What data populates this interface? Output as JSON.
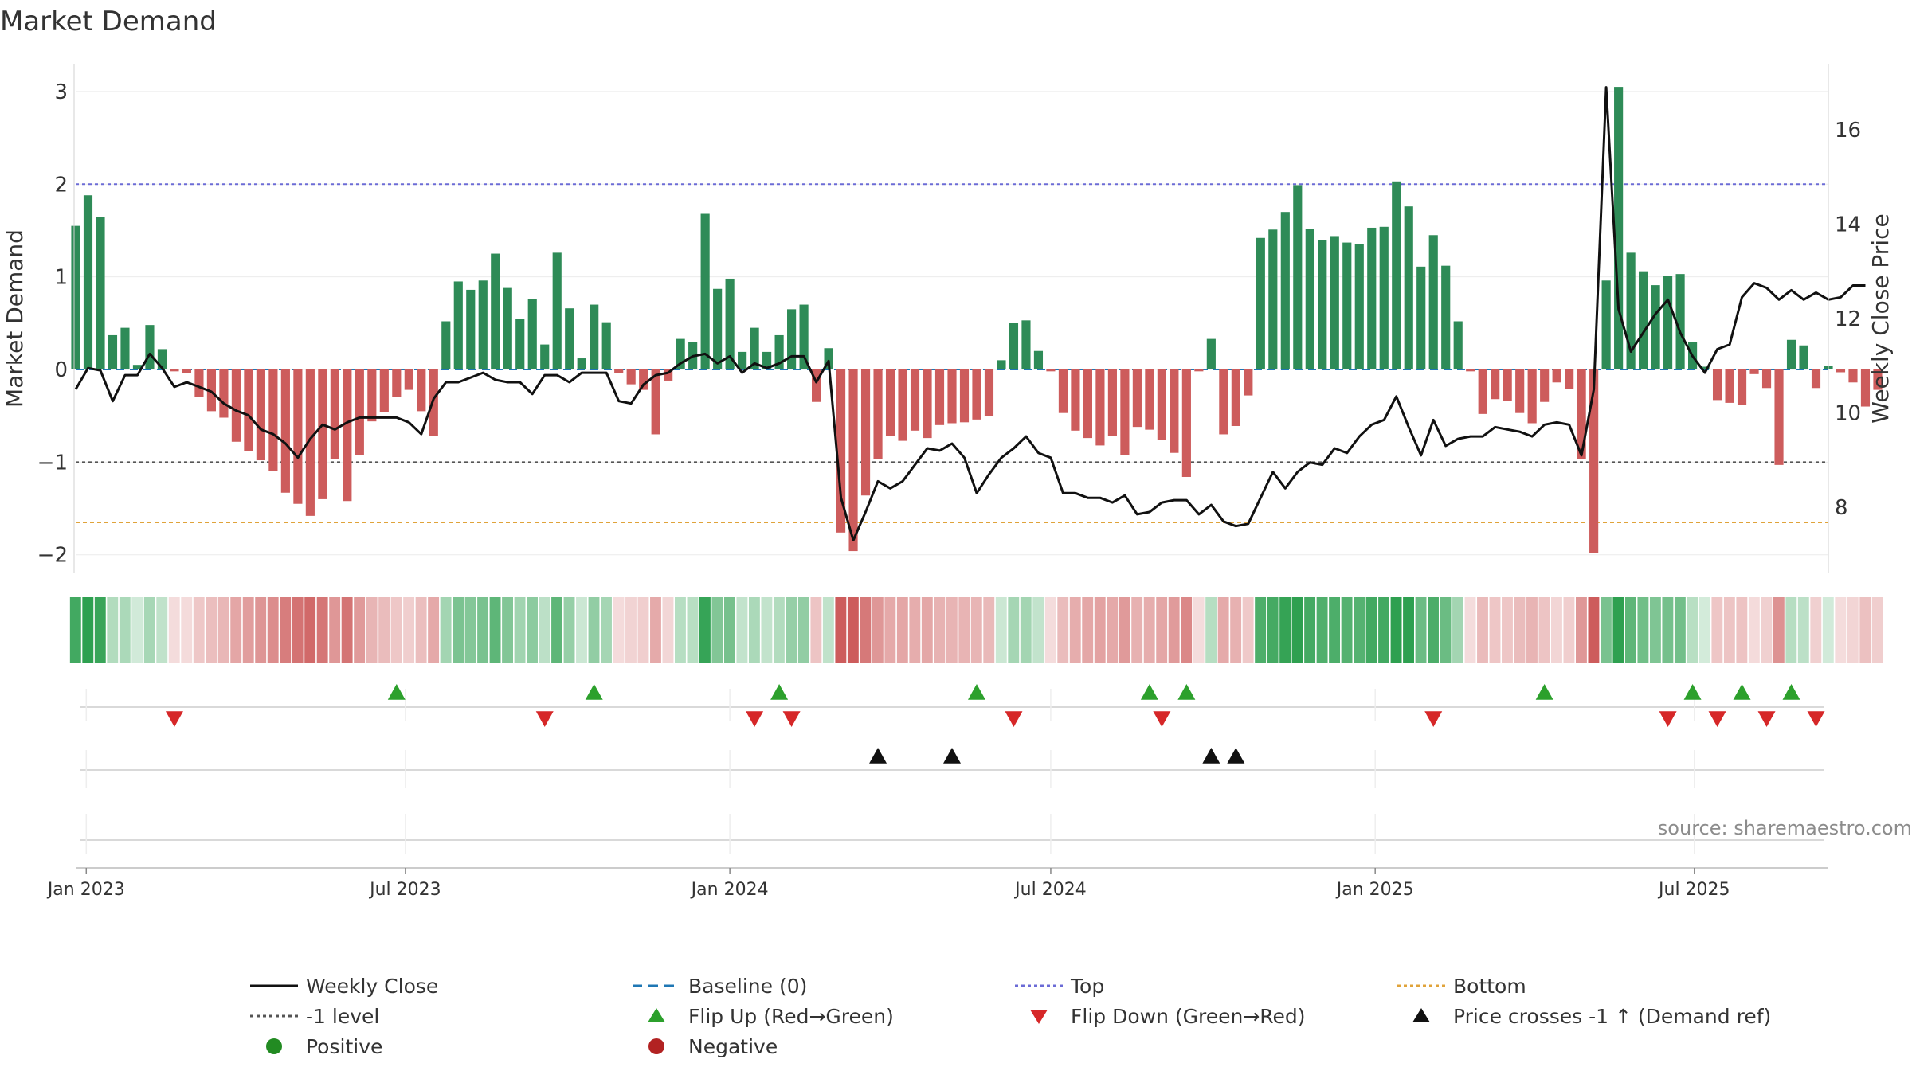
{
  "chart_data": {
    "type": "bar",
    "title": "Market Demand",
    "ylabel_left": "Market Demand",
    "ylabel_right": "Weekly Close Price",
    "source": "source: sharemaestro.com",
    "x_start": "2022-12-26",
    "x_end": "2025-09-15",
    "ylim_left": [
      -2.2,
      3.3
    ],
    "ylim_right": [
      6.6,
      17.4
    ],
    "yticks_left": [
      "3",
      "2",
      "1",
      "0",
      "−1",
      "−2"
    ],
    "yticks_left_values": [
      3,
      2,
      1,
      0,
      -1,
      -2
    ],
    "yticks_right": [
      "16",
      "14",
      "12",
      "10",
      "8"
    ],
    "yticks_right_values": [
      16,
      14,
      12,
      10,
      8
    ],
    "xticks": [
      {
        "date": "2023-01-01",
        "label": "Jan 2023"
      },
      {
        "date": "2023-07-01",
        "label": "Jul 2023"
      },
      {
        "date": "2024-01-01",
        "label": "Jan 2024"
      },
      {
        "date": "2024-07-01",
        "label": "Jul 2024"
      },
      {
        "date": "2025-01-01",
        "label": "Jan 2025"
      },
      {
        "date": "2025-07-01",
        "label": "Jul 2025"
      }
    ],
    "levels": {
      "top": 2.0,
      "minus_one": -1.0,
      "bottom": -1.65,
      "baseline": 0
    },
    "demand": [
      1.55,
      1.88,
      1.65,
      0.37,
      0.45,
      0.05,
      0.48,
      0.22,
      -0.02,
      -0.04,
      -0.3,
      -0.45,
      -0.52,
      -0.78,
      -0.88,
      -0.98,
      -1.1,
      -1.33,
      -1.45,
      -1.58,
      -1.4,
      -0.97,
      -1.42,
      -0.92,
      -0.56,
      -0.46,
      -0.3,
      -0.22,
      -0.45,
      -0.72,
      0.52,
      0.95,
      0.86,
      0.96,
      1.25,
      0.88,
      0.55,
      0.76,
      0.27,
      1.26,
      0.66,
      0.12,
      0.7,
      0.51,
      -0.04,
      -0.16,
      -0.22,
      -0.7,
      -0.12,
      0.33,
      0.3,
      1.68,
      0.87,
      0.98,
      0.19,
      0.45,
      0.19,
      0.37,
      0.65,
      0.7,
      -0.35,
      0.23,
      -1.76,
      -1.96,
      -1.36,
      -0.97,
      -0.72,
      -0.77,
      -0.66,
      -0.74,
      -0.6,
      -0.58,
      -0.57,
      -0.54,
      -0.5,
      0.1,
      0.5,
      0.53,
      0.2,
      -0.02,
      -0.47,
      -0.66,
      -0.74,
      -0.82,
      -0.72,
      -0.92,
      -0.62,
      -0.65,
      -0.76,
      -0.9,
      -1.16,
      -0.02,
      0.33,
      -0.7,
      -0.61,
      -0.28,
      1.42,
      1.51,
      1.7,
      1.99,
      1.52,
      1.4,
      1.44,
      1.37,
      1.35,
      1.53,
      1.54,
      2.03,
      1.76,
      1.11,
      1.45,
      1.12,
      0.52,
      -0.02,
      -0.48,
      -0.32,
      -0.34,
      -0.47,
      -0.58,
      -0.35,
      -0.14,
      -0.21,
      -0.97,
      -1.98,
      0.96,
      3.05,
      1.26,
      1.06,
      0.91,
      1.01,
      1.03,
      0.3,
      0.03,
      -0.33,
      -0.36,
      -0.38,
      -0.05,
      -0.2,
      -1.03,
      0.32,
      0.26,
      -0.2,
      0.04,
      -0.03,
      -0.14,
      -0.4,
      -0.22
    ],
    "close": [
      10.5,
      10.95,
      10.9,
      10.25,
      10.8,
      10.8,
      11.25,
      10.95,
      10.55,
      10.65,
      10.55,
      10.45,
      10.2,
      10.05,
      9.95,
      9.65,
      9.55,
      9.35,
      9.05,
      9.45,
      9.75,
      9.65,
      9.8,
      9.9,
      9.9,
      9.9,
      9.9,
      9.8,
      9.55,
      10.3,
      10.65,
      10.65,
      10.75,
      10.85,
      10.7,
      10.65,
      10.65,
      10.4,
      10.8,
      10.8,
      10.65,
      10.85,
      10.85,
      10.85,
      10.25,
      10.2,
      10.6,
      10.8,
      10.85,
      11.05,
      11.2,
      11.25,
      11.05,
      11.2,
      10.85,
      11.05,
      10.95,
      11.05,
      11.2,
      11.2,
      10.65,
      11.1,
      8.2,
      7.3,
      7.9,
      8.55,
      8.4,
      8.55,
      8.9,
      9.25,
      9.2,
      9.35,
      9.05,
      8.3,
      8.7,
      9.05,
      9.25,
      9.5,
      9.15,
      9.05,
      8.3,
      8.3,
      8.2,
      8.2,
      8.1,
      8.25,
      7.85,
      7.9,
      8.1,
      8.15,
      8.15,
      7.85,
      8.05,
      7.7,
      7.6,
      7.65,
      8.2,
      8.75,
      8.4,
      8.75,
      8.95,
      8.9,
      9.25,
      9.15,
      9.5,
      9.75,
      9.85,
      10.35,
      9.7,
      9.1,
      9.85,
      9.3,
      9.45,
      9.5,
      9.5,
      9.7,
      9.65,
      9.6,
      9.5,
      9.75,
      9.8,
      9.75,
      9.1,
      10.5,
      16.9,
      12.2,
      11.3,
      11.7,
      12.1,
      12.4,
      11.7,
      11.2,
      10.85,
      11.35,
      11.45,
      12.45,
      12.75,
      12.65,
      12.4,
      12.6,
      12.4,
      12.55,
      12.4,
      12.45,
      12.7,
      12.7
    ],
    "flip_up_dates": [
      "2023-06-26",
      "2023-10-16",
      "2024-01-29",
      "2024-05-20",
      "2024-08-26",
      "2024-09-16",
      "2025-04-07",
      "2025-06-30",
      "2025-07-28",
      "2025-08-25"
    ],
    "flip_down_dates": [
      "2023-02-20",
      "2023-09-18",
      "2024-01-15",
      "2024-02-05",
      "2024-06-10",
      "2024-09-02",
      "2025-02-03",
      "2025-06-16",
      "2025-07-14",
      "2025-08-11",
      "2025-09-08"
    ],
    "cross_dates": [
      "2024-03-25",
      "2024-05-06",
      "2024-09-30",
      "2024-10-14"
    ],
    "legend": [
      {
        "label": "Weekly Close",
        "marker": "line-solid",
        "color": "#111111"
      },
      {
        "label": "Baseline (0)",
        "marker": "line-dashed",
        "color": "#1f77b4"
      },
      {
        "label": "Top",
        "marker": "line-dotted",
        "color": "#6b6bd6"
      },
      {
        "label": "Bottom",
        "marker": "line-dotted",
        "color": "#e0a33a"
      },
      {
        "label": "-1 level",
        "marker": "line-dotted",
        "color": "#555555"
      },
      {
        "label": "Flip Up (Red→Green)",
        "marker": "triangle-up",
        "color": "#2ca02c"
      },
      {
        "label": "Flip Down (Green→Red)",
        "marker": "triangle-down",
        "color": "#d62728"
      },
      {
        "label": "Price crosses -1 ↑ (Demand ref)",
        "marker": "triangle-up",
        "color": "#111111"
      },
      {
        "label": "Positive",
        "marker": "circle",
        "color": "#228b22"
      },
      {
        "label": "Negative",
        "marker": "circle",
        "color": "#b22222"
      }
    ],
    "colors": {
      "pos_bar": "#2e8b57",
      "neg_bar": "#cd5c5c",
      "close": "#111111"
    }
  }
}
